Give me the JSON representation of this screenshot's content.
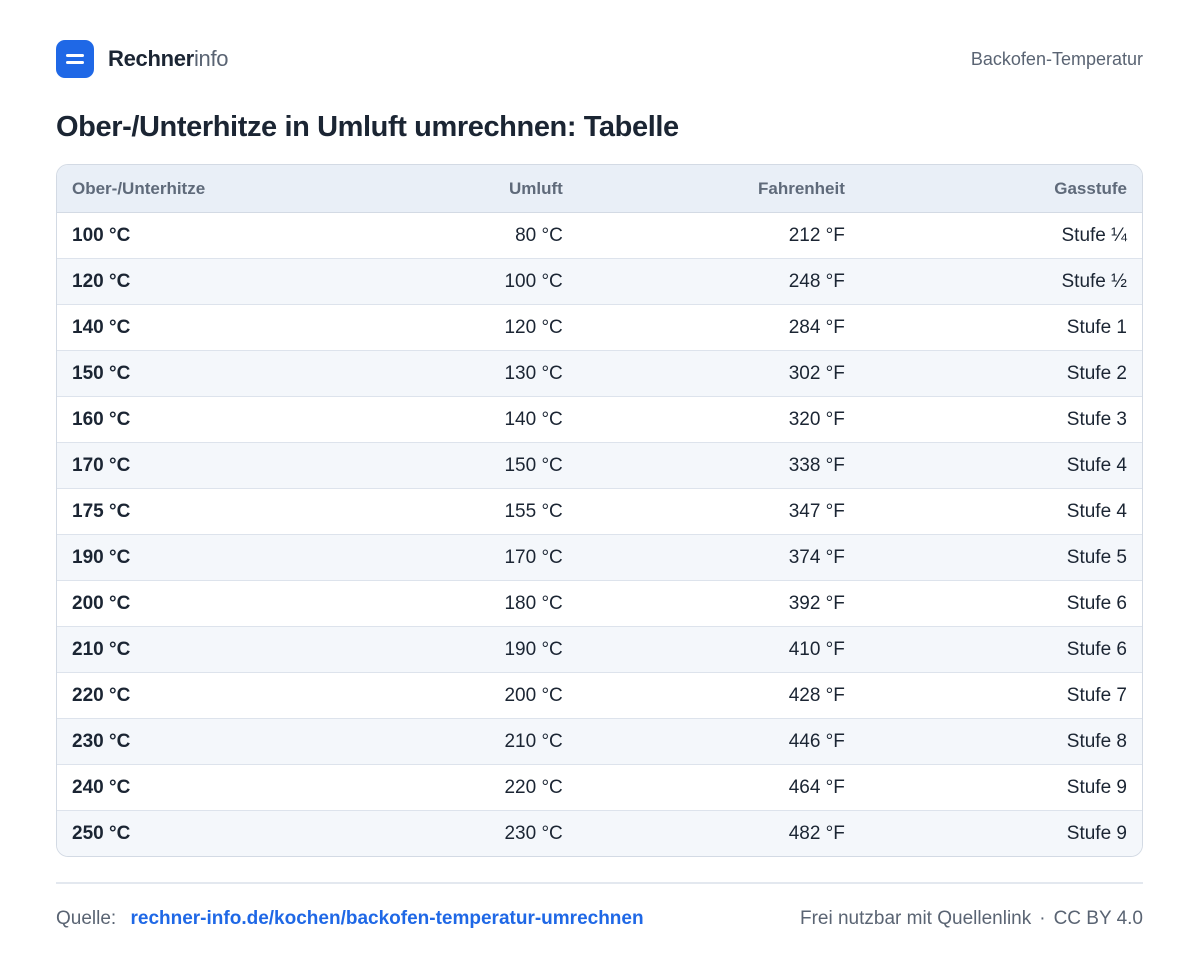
{
  "header": {
    "brand_strong": "Rechner",
    "brand_light": "info",
    "topic": "Backofen-Temperatur"
  },
  "title": "Ober-/Unterhitze in Umluft umrechnen: Tabelle",
  "table": {
    "columns": [
      "Ober-/Unterhitze",
      "Umluft",
      "Fahrenheit",
      "Gasstufe"
    ],
    "rows": [
      [
        "100 °C",
        "80 °C",
        "212 °F",
        "Stufe ¼"
      ],
      [
        "120 °C",
        "100 °C",
        "248 °F",
        "Stufe ½"
      ],
      [
        "140 °C",
        "120 °C",
        "284 °F",
        "Stufe 1"
      ],
      [
        "150 °C",
        "130 °C",
        "302 °F",
        "Stufe 2"
      ],
      [
        "160 °C",
        "140 °C",
        "320 °F",
        "Stufe 3"
      ],
      [
        "170 °C",
        "150 °C",
        "338 °F",
        "Stufe 4"
      ],
      [
        "175 °C",
        "155 °C",
        "347 °F",
        "Stufe 4"
      ],
      [
        "190 °C",
        "170 °C",
        "374 °F",
        "Stufe 5"
      ],
      [
        "200 °C",
        "180 °C",
        "392 °F",
        "Stufe 6"
      ],
      [
        "210 °C",
        "190 °C",
        "410 °F",
        "Stufe 6"
      ],
      [
        "220 °C",
        "200 °C",
        "428 °F",
        "Stufe 7"
      ],
      [
        "230 °C",
        "210 °C",
        "446 °F",
        "Stufe 8"
      ],
      [
        "240 °C",
        "220 °C",
        "464 °F",
        "Stufe 9"
      ],
      [
        "250 °C",
        "230 °C",
        "482 °F",
        "Stufe 9"
      ]
    ]
  },
  "footer": {
    "source_label": "Quelle:",
    "source_link": "rechner-info.de/kochen/backofen-temperatur-umrechnen",
    "license_text": "Frei nutzbar mit Quellenlink",
    "separator": "·",
    "license_name": "CC BY 4.0"
  },
  "icons": {
    "logo": "calculator-logo-icon"
  },
  "colors": {
    "accent": "#1f68e6",
    "text": "#1b2533",
    "muted": "#5a6473",
    "header_bg": "#e9eff7",
    "stripe_bg": "#f4f7fb"
  }
}
